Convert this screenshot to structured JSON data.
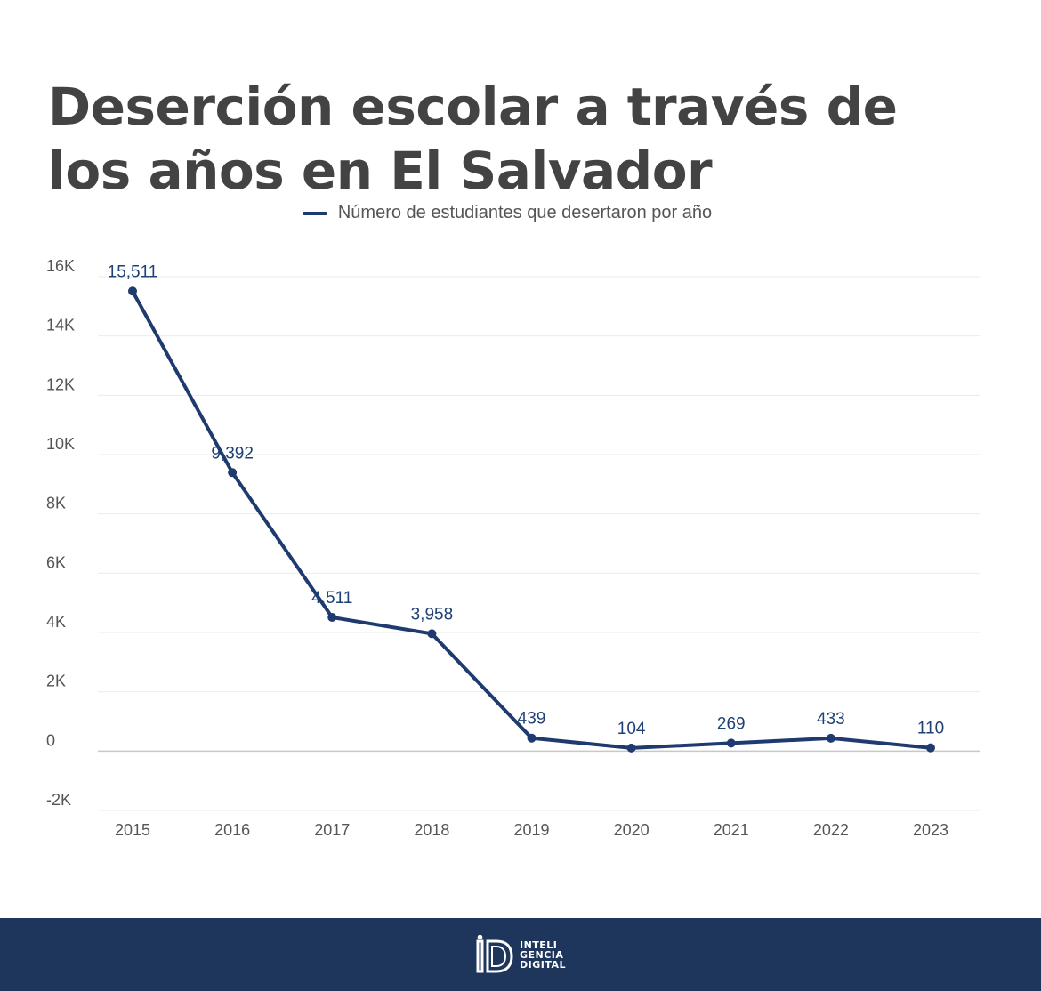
{
  "chart_data": {
    "type": "line",
    "title": "Deserción escolar a través de los años en El Salvador",
    "categories": [
      "2015",
      "2016",
      "2017",
      "2018",
      "2019",
      "2020",
      "2021",
      "2022",
      "2023"
    ],
    "series": [
      {
        "name": "Número de estudiantes que desertaron por año",
        "values": [
          15511,
          9392,
          4511,
          3958,
          439,
          104,
          269,
          433,
          110
        ],
        "labels": [
          "15,511",
          "9,392",
          "4,511",
          "3,958",
          "439",
          "104",
          "269",
          "433",
          "110"
        ]
      }
    ],
    "y_ticks": [
      16000,
      14000,
      12000,
      10000,
      8000,
      6000,
      4000,
      2000,
      0,
      -2000
    ],
    "y_tick_labels": [
      "16K",
      "14K",
      "12K",
      "10K",
      "8K",
      "6K",
      "4K",
      "2K",
      "0",
      "-2K"
    ],
    "ylim": [
      -2000,
      16000
    ],
    "grid": true,
    "legend_position": "top-center",
    "line_color": "#1e3a6e",
    "xlabel": "",
    "ylabel": ""
  },
  "footer": {
    "brand_lines": [
      "INTELI",
      "GENCIA",
      "DIGITAL"
    ],
    "logo_icon": "inteligencia-digital-logo-icon",
    "background_color": "#1f365c"
  }
}
